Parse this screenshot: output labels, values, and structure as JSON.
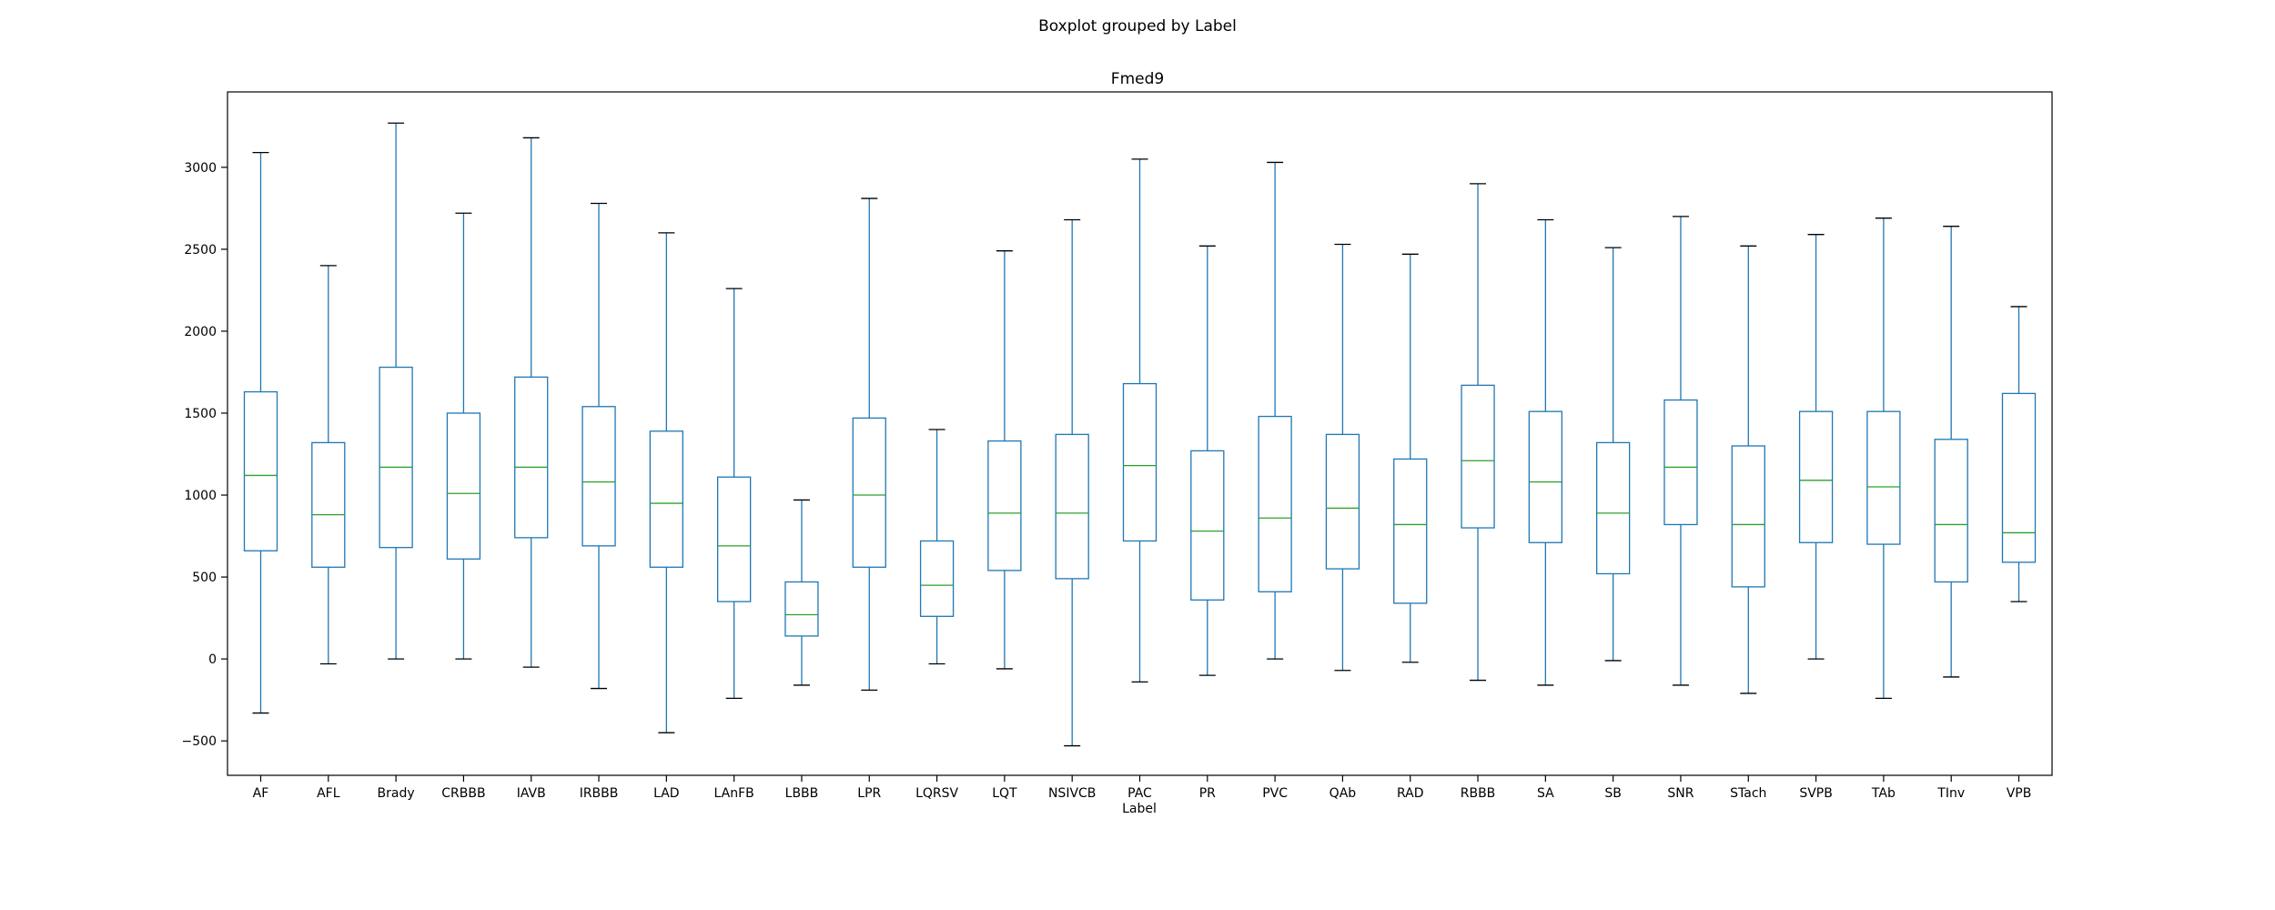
{
  "suptitle": "Boxplot grouped by Label",
  "chart_data": {
    "type": "boxplot",
    "title": "Fmed9",
    "xlabel": "Label",
    "ylabel": "",
    "ylim": [
      -710,
      3460
    ],
    "yticks": [
      -500,
      0,
      500,
      1000,
      1500,
      2000,
      2500,
      3000
    ],
    "grid": false,
    "colors": {
      "box": "#1f77b4",
      "median": "#2ca02c",
      "cap": "#000000"
    },
    "categories": [
      "AF",
      "AFL",
      "Brady",
      "CRBBB",
      "IAVB",
      "IRBBB",
      "LAD",
      "LAnFB",
      "LBBB",
      "LPR",
      "LQRSV",
      "LQT",
      "NSIVCB",
      "PAC",
      "PR",
      "PVC",
      "QAb",
      "RAD",
      "RBBB",
      "SA",
      "SB",
      "SNR",
      "STach",
      "SVPB",
      "TAb",
      "TInv",
      "VPB"
    ],
    "boxes": [
      {
        "low": -330,
        "q1": 660,
        "median": 1120,
        "q3": 1630,
        "high": 3090
      },
      {
        "low": -30,
        "q1": 560,
        "median": 880,
        "q3": 1320,
        "high": 2400
      },
      {
        "low": 0,
        "q1": 680,
        "median": 1170,
        "q3": 1780,
        "high": 3270
      },
      {
        "low": 0,
        "q1": 610,
        "median": 1010,
        "q3": 1500,
        "high": 2720
      },
      {
        "low": -50,
        "q1": 740,
        "median": 1170,
        "q3": 1720,
        "high": 3180
      },
      {
        "low": -180,
        "q1": 690,
        "median": 1080,
        "q3": 1540,
        "high": 2780
      },
      {
        "low": -450,
        "q1": 560,
        "median": 950,
        "q3": 1390,
        "high": 2600
      },
      {
        "low": -240,
        "q1": 350,
        "median": 690,
        "q3": 1110,
        "high": 2260
      },
      {
        "low": -160,
        "q1": 140,
        "median": 270,
        "q3": 470,
        "high": 970
      },
      {
        "low": -190,
        "q1": 560,
        "median": 1000,
        "q3": 1470,
        "high": 2810
      },
      {
        "low": -30,
        "q1": 260,
        "median": 450,
        "q3": 720,
        "high": 1400
      },
      {
        "low": -60,
        "q1": 540,
        "median": 890,
        "q3": 1330,
        "high": 2490
      },
      {
        "low": -530,
        "q1": 490,
        "median": 890,
        "q3": 1370,
        "high": 2680
      },
      {
        "low": -140,
        "q1": 720,
        "median": 1180,
        "q3": 1680,
        "high": 3050
      },
      {
        "low": -100,
        "q1": 360,
        "median": 780,
        "q3": 1270,
        "high": 2520
      },
      {
        "low": 0,
        "q1": 410,
        "median": 860,
        "q3": 1480,
        "high": 3030
      },
      {
        "low": -70,
        "q1": 550,
        "median": 920,
        "q3": 1370,
        "high": 2530
      },
      {
        "low": -20,
        "q1": 340,
        "median": 820,
        "q3": 1220,
        "high": 2470
      },
      {
        "low": -130,
        "q1": 800,
        "median": 1210,
        "q3": 1670,
        "high": 2900
      },
      {
        "low": -160,
        "q1": 710,
        "median": 1080,
        "q3": 1510,
        "high": 2680
      },
      {
        "low": -10,
        "q1": 520,
        "median": 890,
        "q3": 1320,
        "high": 2510
      },
      {
        "low": -160,
        "q1": 820,
        "median": 1170,
        "q3": 1580,
        "high": 2700
      },
      {
        "low": -210,
        "q1": 440,
        "median": 820,
        "q3": 1300,
        "high": 2520
      },
      {
        "low": 0,
        "q1": 710,
        "median": 1090,
        "q3": 1510,
        "high": 2590
      },
      {
        "low": -240,
        "q1": 700,
        "median": 1050,
        "q3": 1510,
        "high": 2690
      },
      {
        "low": -110,
        "q1": 470,
        "median": 820,
        "q3": 1340,
        "high": 2640
      },
      {
        "low": 350,
        "q1": 590,
        "median": 770,
        "q3": 1620,
        "high": 2150
      }
    ]
  }
}
